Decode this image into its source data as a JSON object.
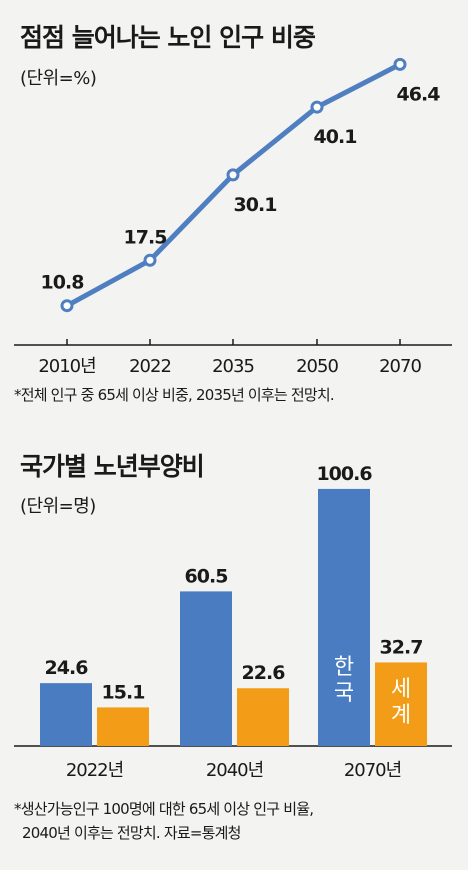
{
  "line_section": {
    "title": "점점 늘어나는 노인 인구 비중",
    "unit": "(단위=%)",
    "note": "*전체 인구 중 65세 이상 비중, 2035년 이후는 전망치."
  },
  "bar_section": {
    "title": "국가별 노년부양비",
    "unit": "(단위=명)",
    "note_line1": "*생산가능인구 100명에 대한 65세 이상 인구 비율,",
    "note_line2": "2040년 이후는 전망치. 자료=통계청"
  },
  "colors": {
    "line": "#4f7fc1",
    "korea": "#4a7cc2",
    "world": "#f39c17"
  },
  "chart_data": [
    {
      "type": "line",
      "title": "점점 늘어나는 노인 인구 비중",
      "ylabel": "(단위=%)",
      "categories": [
        "2010년",
        "2022",
        "2035",
        "2050",
        "2070"
      ],
      "values": [
        10.8,
        17.5,
        30.1,
        40.1,
        46.4
      ],
      "value_labels": [
        "10.8",
        "17.5",
        "30.1",
        "40.1",
        "46.4"
      ],
      "ylim": [
        5,
        50
      ],
      "grid": false
    },
    {
      "type": "bar",
      "title": "국가별 노년부양비",
      "ylabel": "(단위=명)",
      "categories": [
        "2022년",
        "2040년",
        "2070년"
      ],
      "series": [
        {
          "name": "한국",
          "values": [
            24.6,
            60.5,
            100.6
          ],
          "value_labels": [
            "24.6",
            "60.5",
            "100.6"
          ]
        },
        {
          "name": "세계",
          "values": [
            15.1,
            22.6,
            32.7
          ],
          "value_labels": [
            "15.1",
            "22.6",
            "32.7"
          ]
        }
      ],
      "ylim": [
        0,
        108
      ],
      "grid": false
    }
  ]
}
